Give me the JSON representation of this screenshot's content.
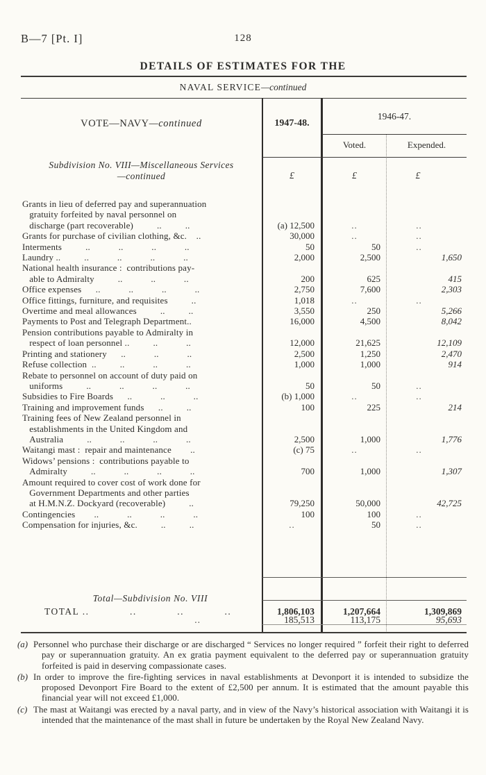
{
  "page": {
    "header_code": "B—7 [Pt. I]",
    "page_number": "128",
    "title": "DETAILS OF ESTIMATES FOR THE",
    "subtitle_caps": "NAVAL SERVICE",
    "subtitle_cont": "—continued"
  },
  "table": {
    "vote_header_caps": "VOTE—NAVY",
    "vote_header_cont": "—continued",
    "col_1947": "1947-48.",
    "col_1946": "1946-47.",
    "col_voted": "Voted.",
    "col_expended": "Expended.",
    "subdivision_line1": "Subdivision No. VIII—Miscellaneous Services",
    "subdivision_line2": "—continued",
    "currency": "£",
    "rows": [
      {
        "label": "Grants in lieu of deferred pay and superannuation\n   gratuity forfeited by naval personnel on\n   discharge (part recoverable)          ..          ..",
        "c1": "(a) 12,500",
        "c2": "..",
        "c3": ".."
      },
      {
        "label": "Grants for purchase of civilian clothing, &c.    ..",
        "c1": "30,000",
        "c2": "..",
        "c3": ".."
      },
      {
        "label": "Interments          ..            ..            ..            ..",
        "c1": "50",
        "c2": "50",
        "c3": ".."
      },
      {
        "label": "Laundry ..          ..            ..            ..            ..",
        "c1": "2,000",
        "c2": "2,500",
        "c3": "1,650"
      },
      {
        "label": "National health insurance :  contributions pay-\n   able to Admiralty          ..            ..            ..",
        "c1": "200",
        "c2": "625",
        "c3": "415"
      },
      {
        "label": "Office expenses      ..            ..            ..            ..",
        "c1": "2,750",
        "c2": "7,600",
        "c3": "2,303"
      },
      {
        "label": "Office fittings, furniture, and requisites          ..",
        "c1": "1,018",
        "c2": "..",
        "c3": ".."
      },
      {
        "label": "Overtime and meal allowances          ..          ..",
        "c1": "3,550",
        "c2": "250",
        "c3": "5,266"
      },
      {
        "label": "Payments to Post and Telegraph Department..",
        "c1": "16,000",
        "c2": "4,500",
        "c3": "8,042"
      },
      {
        "label": "Pension contributions payable to Admiralty in\n   respect of loan personnel ..          ..            ..",
        "c1": "12,000",
        "c2": "21,625",
        "c3": "12,109"
      },
      {
        "label": "Printing and stationery      ..            ..            ..",
        "c1": "2,500",
        "c2": "1,250",
        "c3": "2,470"
      },
      {
        "label": "Refuse collection  ..          ..            ..            ..",
        "c1": "1,000",
        "c2": "1,000",
        "c3": "914"
      },
      {
        "label": "Rebate to personnel on account of duty paid on\n   uniforms          ..            ..            ..            ..",
        "c1": "50",
        "c2": "50",
        "c3": ".."
      },
      {
        "label": "Subsidies to Fire Boards      ..            ..            ..",
        "c1": "(b) 1,000",
        "c2": "..",
        "c3": ".."
      },
      {
        "label": "Training and improvement funds      ..          ..",
        "c1": "100",
        "c2": "225",
        "c3": "214"
      },
      {
        "label": "Training fees of New Zealand personnel in\n   establishments in the United Kingdom and\n   Australia          ..            ..            ..            ..",
        "c1": "2,500",
        "c2": "1,000",
        "c3": "1,776"
      },
      {
        "label": "Waitangi mast :  repair and maintenance        ..",
        "c1": "(c) 75",
        "c2": "..",
        "c3": ".."
      },
      {
        "label": "Widows’ pensions :  contributions payable to\n   Admiralty          ..            ..            ..            ..",
        "c1": "700",
        "c2": "1,000",
        "c3": "1,307"
      },
      {
        "label": "Amount required to cover cost of work done for\n   Government Departments and other parties\n   at H.M.N.Z. Dockyard (recoverable)          ..",
        "c1": "79,250",
        "c2": "50,000",
        "c3": "42,725"
      },
      {
        "label": "Contingencies        ..            ..            ..            ..",
        "c1": "100",
        "c2": "100",
        "c3": ".."
      },
      {
        "label": "Compensation for injuries, &c.          ..          ..",
        "c1": "..",
        "c2": "50",
        "c3": ".."
      }
    ],
    "total_subdivision": {
      "label": "Total—Subdivision No. VIII",
      "dots": "..",
      "c1": "185,513",
      "c2": "113,175",
      "c3": "95,693"
    },
    "grand_total": {
      "label": "TOTAL ..            ..            ..            ..",
      "c1": "1,806,103",
      "c2": "1,207,664",
      "c3": "1,309,869"
    }
  },
  "footnotes": [
    {
      "marker": "(a)",
      "text": "Personnel who purchase their discharge or are discharged “ Services no longer required ” forfeit their right to deferred pay or superannuation gratuity.  An ex gratia payment equivalent to the deferred pay or superannuation gratuity forfeited is paid in deserving compassionate cases."
    },
    {
      "marker": "(b)",
      "text": "In order to improve the fire-fighting services in naval establishments at Devonport it is intended to subsidize the proposed Devonport Fire Board to the extent of £2,500 per annum.  It is estimated that the amount payable this financial year will not exceed £1,000."
    },
    {
      "marker": "(c)",
      "text": "The mast at Waitangi was erected by a naval party, and in view of the Navy’s historical association with Waitangi it is intended that the maintenance of the mast shall in future be undertaken by the Royal New Zealand Navy."
    }
  ]
}
